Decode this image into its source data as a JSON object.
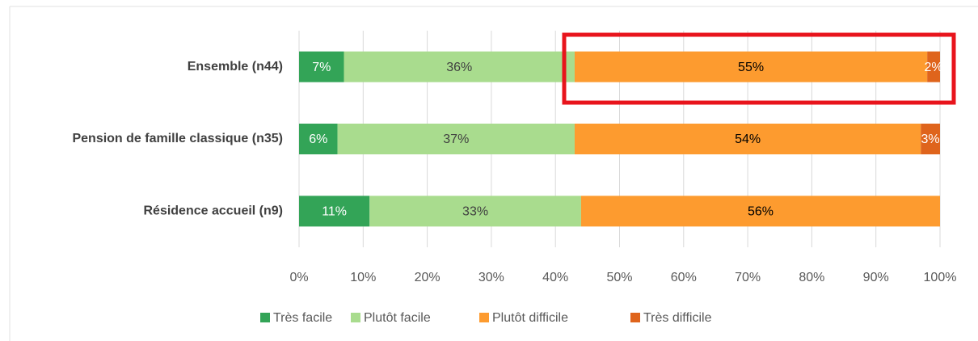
{
  "chart_data": {
    "type": "bar",
    "orientation": "horizontal",
    "stacked": true,
    "categories": [
      "Ensemble (n44)",
      "Pension de famille classique (n35)",
      "Résidence accueil (n9)"
    ],
    "series": [
      {
        "name": "Très facile",
        "color": "#33a457",
        "values": [
          7,
          6,
          11
        ],
        "value_labels": [
          "7%",
          "6%",
          "11%"
        ]
      },
      {
        "name": "Plutôt facile",
        "color": "#a9dc8e",
        "values": [
          36,
          37,
          33
        ],
        "value_labels": [
          "36%",
          "37%",
          "33%"
        ]
      },
      {
        "name": "Plutôt difficile",
        "color": "#fd9b2f",
        "values": [
          55,
          54,
          56
        ],
        "value_labels": [
          "55%",
          "54%",
          "56%"
        ]
      },
      {
        "name": "Très difficile",
        "color": "#df641c",
        "values": [
          2,
          3,
          null
        ],
        "value_labels": [
          "2%",
          "3%",
          null
        ]
      }
    ],
    "xlim": [
      0,
      100
    ],
    "xticks": [
      {
        "value": 0,
        "label": "0%"
      },
      {
        "value": 10,
        "label": "10%"
      },
      {
        "value": 20,
        "label": "20%"
      },
      {
        "value": 30,
        "label": "30%"
      },
      {
        "value": 40,
        "label": "40%"
      },
      {
        "value": 50,
        "label": "50%"
      },
      {
        "value": 60,
        "label": "60%"
      },
      {
        "value": 70,
        "label": "70%"
      },
      {
        "value": 80,
        "label": "80%"
      },
      {
        "value": 90,
        "label": "90%"
      },
      {
        "value": 100,
        "label": "100%"
      }
    ],
    "grid": true,
    "legend": "bottom"
  }
}
